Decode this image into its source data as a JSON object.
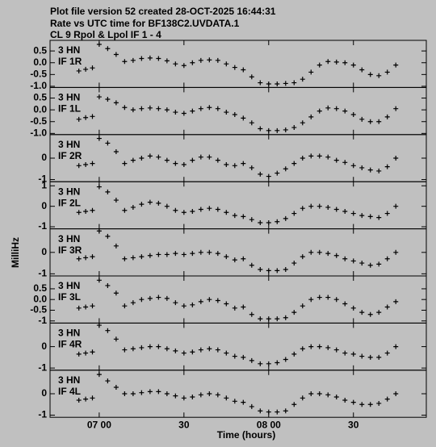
{
  "header": [
    "Plot file version 52  created 28-OCT-2025 16:44:31",
    "Rate vs UTC time for BF138C2.UVDATA.1",
    "CL 9  Rpol & Lpol  IF 1 - 4"
  ],
  "ylabel": "MilliHz",
  "xlabel": "Time (hours)",
  "chart_data": [
    {
      "type": "scatter",
      "annotation": [
        "3 HN",
        "IF 1R"
      ],
      "ylim": [
        -1.05,
        0.95
      ],
      "yticks": [
        0.5,
        {
          "value": 0,
          "label": "0.0"
        },
        -0.5,
        {
          "value": -1,
          "label": "-1.0"
        }
      ],
      "xlim": [
        6.71,
        8.93
      ],
      "xticks": [
        {
          "value": 7.0,
          "label": "07 00"
        },
        {
          "value": 7.5,
          "label": "30"
        },
        {
          "value": 8.0,
          "label": "08 00"
        },
        {
          "value": 8.5,
          "label": "30"
        }
      ],
      "x": [
        6.88,
        6.92,
        6.96,
        7.0,
        7.05,
        7.1,
        7.15,
        7.2,
        7.25,
        7.3,
        7.35,
        7.4,
        7.45,
        7.5,
        7.55,
        7.6,
        7.65,
        7.7,
        7.75,
        7.8,
        7.85,
        7.9,
        7.95,
        8.0,
        8.05,
        8.1,
        8.15,
        8.2,
        8.25,
        8.3,
        8.35,
        8.4,
        8.45,
        8.5,
        8.55,
        8.6,
        8.65,
        8.7,
        8.75
      ],
      "values": [
        -0.35,
        -0.28,
        -0.22,
        0.78,
        0.6,
        0.35,
        0.05,
        0.1,
        0.18,
        0.2,
        0.18,
        0.08,
        -0.05,
        -0.12,
        0.0,
        0.1,
        0.12,
        0.1,
        -0.05,
        -0.2,
        -0.3,
        -0.6,
        -0.85,
        -0.9,
        -0.9,
        -0.88,
        -0.85,
        -0.7,
        -0.4,
        -0.1,
        0.05,
        0.03,
        0,
        -0.1,
        -0.3,
        -0.5,
        -0.55,
        -0.4,
        -0.1
      ]
    },
    {
      "type": "scatter",
      "annotation": [
        "3 HN",
        "IF 1L"
      ],
      "ylim": [
        -1.05,
        0.95
      ],
      "yticks": [
        0.5,
        {
          "value": 0,
          "label": "0.0"
        },
        -0.5,
        {
          "value": -1,
          "label": "-1.0"
        }
      ],
      "xlim": [
        6.71,
        8.93
      ],
      "xticks": [
        {
          "value": 7.0,
          "label": "07 00"
        },
        {
          "value": 7.5,
          "label": "30"
        },
        {
          "value": 8.0,
          "label": "08 00"
        },
        {
          "value": 8.5,
          "label": "30"
        }
      ],
      "x": [
        6.88,
        6.92,
        6.96,
        7.0,
        7.05,
        7.1,
        7.15,
        7.2,
        7.25,
        7.3,
        7.35,
        7.4,
        7.45,
        7.5,
        7.55,
        7.6,
        7.65,
        7.7,
        7.75,
        7.8,
        7.85,
        7.9,
        7.95,
        8.0,
        8.05,
        8.1,
        8.15,
        8.2,
        8.25,
        8.3,
        8.35,
        8.4,
        8.45,
        8.5,
        8.55,
        8.6,
        8.65,
        8.7,
        8.75
      ],
      "values": [
        -0.4,
        -0.33,
        -0.28,
        0.55,
        0.45,
        0.3,
        0.1,
        0.0,
        0.05,
        0.08,
        0.05,
        0.0,
        -0.1,
        -0.15,
        -0.05,
        0.05,
        0.1,
        0.05,
        -0.1,
        -0.2,
        -0.35,
        -0.55,
        -0.8,
        -0.88,
        -0.88,
        -0.85,
        -0.75,
        -0.55,
        -0.3,
        -0.05,
        0.08,
        0.05,
        -0.05,
        -0.2,
        -0.4,
        -0.5,
        -0.5,
        -0.3,
        0.05
      ]
    },
    {
      "type": "scatter",
      "annotation": [
        "3 HN",
        "IF 2R"
      ],
      "ylim": [
        -1.1,
        1.1
      ],
      "yticks": [
        0,
        -1
      ],
      "xlim": [
        6.71,
        8.93
      ],
      "xticks": [
        {
          "value": 7.0,
          "label": "07 00"
        },
        {
          "value": 7.5,
          "label": "30"
        },
        {
          "value": 8.0,
          "label": "08 00"
        },
        {
          "value": 8.5,
          "label": "30"
        }
      ],
      "x": [
        6.88,
        6.92,
        6.96,
        7.0,
        7.05,
        7.1,
        7.15,
        7.2,
        7.25,
        7.3,
        7.35,
        7.4,
        7.45,
        7.5,
        7.55,
        7.6,
        7.65,
        7.7,
        7.75,
        7.8,
        7.85,
        7.9,
        7.95,
        8.0,
        8.05,
        8.1,
        8.15,
        8.2,
        8.25,
        8.3,
        8.35,
        8.4,
        8.45,
        8.5,
        8.55,
        8.6,
        8.65,
        8.7,
        8.75
      ],
      "values": [
        -0.35,
        -0.3,
        -0.25,
        0.92,
        0.7,
        0.3,
        -0.25,
        -0.1,
        0.0,
        0.1,
        0.05,
        -0.1,
        -0.25,
        -0.3,
        -0.1,
        0.05,
        0.05,
        -0.1,
        -0.3,
        -0.35,
        -0.25,
        -0.45,
        -0.75,
        -0.85,
        -0.7,
        -0.5,
        -0.25,
        0.0,
        0.1,
        0.1,
        0.05,
        -0.1,
        -0.2,
        -0.35,
        -0.45,
        -0.55,
        -0.6,
        -0.4,
        0.0
      ]
    },
    {
      "type": "scatter",
      "annotation": [
        "3 HN",
        "IF 2L"
      ],
      "ylim": [
        -1.1,
        1.2
      ],
      "yticks": [
        1,
        0,
        -1
      ],
      "xlim": [
        6.71,
        8.93
      ],
      "xticks": [
        {
          "value": 7.0,
          "label": "07 00"
        },
        {
          "value": 7.5,
          "label": "30"
        },
        {
          "value": 8.0,
          "label": "08 00"
        },
        {
          "value": 8.5,
          "label": "30"
        }
      ],
      "x": [
        6.88,
        6.92,
        6.96,
        7.0,
        7.05,
        7.1,
        7.15,
        7.2,
        7.25,
        7.3,
        7.35,
        7.4,
        7.45,
        7.5,
        7.55,
        7.6,
        7.65,
        7.7,
        7.75,
        7.8,
        7.85,
        7.9,
        7.95,
        8.0,
        8.05,
        8.1,
        8.15,
        8.2,
        8.25,
        8.3,
        8.35,
        8.4,
        8.45,
        8.5,
        8.55,
        8.6,
        8.65,
        8.7,
        8.75
      ],
      "values": [
        -0.3,
        -0.25,
        -0.2,
        0.95,
        0.7,
        0.3,
        -0.2,
        -0.05,
        0.1,
        0.2,
        0.15,
        0.0,
        -0.2,
        -0.3,
        -0.25,
        -0.15,
        -0.1,
        -0.15,
        -0.3,
        -0.45,
        -0.5,
        -0.65,
        -0.8,
        -0.8,
        -0.75,
        -0.6,
        -0.35,
        -0.1,
        0.0,
        0.0,
        -0.05,
        -0.15,
        -0.25,
        -0.35,
        -0.45,
        -0.5,
        -0.55,
        -0.35,
        0.0
      ]
    },
    {
      "type": "scatter",
      "annotation": [
        "3 HN",
        "IF 3R"
      ],
      "ylim": [
        -1.1,
        1.1
      ],
      "yticks": [
        0,
        -1
      ],
      "xlim": [
        6.71,
        8.93
      ],
      "xticks": [
        {
          "value": 7.0,
          "label": "07 00"
        },
        {
          "value": 7.5,
          "label": "30"
        },
        {
          "value": 8.0,
          "label": "08 00"
        },
        {
          "value": 8.5,
          "label": "30"
        }
      ],
      "x": [
        6.88,
        6.92,
        6.96,
        7.0,
        7.05,
        7.1,
        7.15,
        7.2,
        7.25,
        7.3,
        7.35,
        7.4,
        7.45,
        7.5,
        7.55,
        7.6,
        7.65,
        7.7,
        7.75,
        7.8,
        7.85,
        7.9,
        7.95,
        8.0,
        8.05,
        8.1,
        8.15,
        8.2,
        8.25,
        8.3,
        8.35,
        8.4,
        8.45,
        8.5,
        8.55,
        8.6,
        8.65,
        8.7,
        8.75
      ],
      "values": [
        -0.3,
        -0.25,
        -0.2,
        1.0,
        0.75,
        0.3,
        -0.3,
        -0.25,
        -0.2,
        -0.15,
        -0.1,
        -0.1,
        -0.05,
        -0.1,
        -0.05,
        0.0,
        0.0,
        -0.05,
        -0.2,
        -0.35,
        -0.3,
        -0.6,
        -0.8,
        -0.85,
        -0.85,
        -0.8,
        -0.5,
        -0.2,
        0.0,
        0.0,
        -0.05,
        -0.15,
        -0.3,
        -0.4,
        -0.5,
        -0.6,
        -0.55,
        -0.3,
        0.0
      ]
    },
    {
      "type": "scatter",
      "annotation": [
        "3 HN",
        "IF 3L"
      ],
      "ylim": [
        -1.1,
        1.1
      ],
      "yticks": [
        0.5,
        {
          "value": 0,
          "label": "0.0"
        },
        -0.5,
        -1
      ],
      "xlim": [
        6.71,
        8.93
      ],
      "xticks": [
        {
          "value": 7.0,
          "label": "07 00"
        },
        {
          "value": 7.5,
          "label": "30"
        },
        {
          "value": 8.0,
          "label": "08 00"
        },
        {
          "value": 8.5,
          "label": "30"
        }
      ],
      "x": [
        6.88,
        6.92,
        6.96,
        7.0,
        7.05,
        7.1,
        7.15,
        7.2,
        7.25,
        7.3,
        7.35,
        7.4,
        7.45,
        7.5,
        7.55,
        7.6,
        7.65,
        7.7,
        7.75,
        7.8,
        7.85,
        7.9,
        7.95,
        8.0,
        8.05,
        8.1,
        8.15,
        8.2,
        8.25,
        8.3,
        8.35,
        8.4,
        8.45,
        8.5,
        8.55,
        8.6,
        8.65,
        8.7,
        8.75
      ],
      "values": [
        -0.4,
        -0.35,
        -0.3,
        0.9,
        0.65,
        0.3,
        -0.3,
        -0.15,
        0.0,
        0.05,
        0.1,
        0.05,
        -0.15,
        -0.3,
        -0.25,
        -0.1,
        0.0,
        -0.05,
        -0.2,
        -0.4,
        -0.35,
        -0.7,
        -0.9,
        -0.9,
        -0.9,
        -0.85,
        -0.6,
        -0.3,
        0.0,
        0.1,
        0.1,
        0.0,
        -0.2,
        -0.4,
        -0.6,
        -0.7,
        -0.6,
        -0.35,
        -0.1
      ]
    },
    {
      "type": "scatter",
      "annotation": [
        "3 HN",
        "IF 4R"
      ],
      "ylim": [
        -1.1,
        1.1
      ],
      "yticks": [
        0,
        -1
      ],
      "xlim": [
        6.71,
        8.93
      ],
      "xticks": [
        {
          "value": 7.0,
          "label": "07 00"
        },
        {
          "value": 7.5,
          "label": "30"
        },
        {
          "value": 8.0,
          "label": "08 00"
        },
        {
          "value": 8.5,
          "label": "30"
        }
      ],
      "x": [
        6.88,
        6.92,
        6.96,
        7.0,
        7.05,
        7.1,
        7.15,
        7.2,
        7.25,
        7.3,
        7.35,
        7.4,
        7.45,
        7.5,
        7.55,
        7.6,
        7.65,
        7.7,
        7.75,
        7.8,
        7.85,
        7.9,
        7.95,
        8.0,
        8.05,
        8.1,
        8.15,
        8.2,
        8.25,
        8.3,
        8.35,
        8.4,
        8.45,
        8.5,
        8.55,
        8.6,
        8.65,
        8.7,
        8.75
      ],
      "values": [
        -0.35,
        -0.3,
        -0.25,
        1.0,
        0.75,
        0.35,
        -0.15,
        -0.1,
        -0.05,
        0.0,
        0.0,
        -0.1,
        -0.2,
        -0.3,
        -0.25,
        -0.15,
        -0.1,
        -0.15,
        -0.3,
        -0.45,
        -0.5,
        -0.65,
        -0.8,
        -0.8,
        -0.75,
        -0.6,
        -0.35,
        -0.1,
        0.0,
        0.0,
        -0.05,
        -0.15,
        -0.3,
        -0.35,
        -0.45,
        -0.5,
        -0.5,
        -0.3,
        0.0
      ]
    },
    {
      "type": "scatter",
      "annotation": [
        "3 HN",
        "IF 4L"
      ],
      "ylim": [
        -1.1,
        1.1
      ],
      "yticks": [
        0,
        -1
      ],
      "xlim": [
        6.71,
        8.93
      ],
      "xticks": [
        {
          "value": 7.0,
          "label": "07 00"
        },
        {
          "value": 7.5,
          "label": "30"
        },
        {
          "value": 8.0,
          "label": "08 00"
        },
        {
          "value": 8.5,
          "label": "30"
        }
      ],
      "x": [
        6.88,
        6.92,
        6.96,
        7.0,
        7.05,
        7.1,
        7.15,
        7.2,
        7.25,
        7.3,
        7.35,
        7.4,
        7.45,
        7.5,
        7.55,
        7.6,
        7.65,
        7.7,
        7.75,
        7.8,
        7.85,
        7.9,
        7.95,
        8.0,
        8.05,
        8.1,
        8.15,
        8.2,
        8.25,
        8.3,
        8.35,
        8.4,
        8.45,
        8.5,
        8.55,
        8.6,
        8.65,
        8.7,
        8.75
      ],
      "values": [
        -0.3,
        -0.25,
        -0.2,
        0.9,
        0.6,
        0.3,
        0.0,
        0.0,
        0.05,
        0.1,
        0.1,
        0.0,
        -0.1,
        -0.2,
        -0.15,
        -0.05,
        0.0,
        -0.05,
        -0.2,
        -0.35,
        -0.4,
        -0.6,
        -0.8,
        -0.85,
        -0.85,
        -0.8,
        -0.5,
        -0.2,
        0.0,
        0.0,
        -0.05,
        -0.15,
        -0.3,
        -0.4,
        -0.5,
        -0.5,
        -0.45,
        -0.25,
        0.0
      ]
    }
  ]
}
